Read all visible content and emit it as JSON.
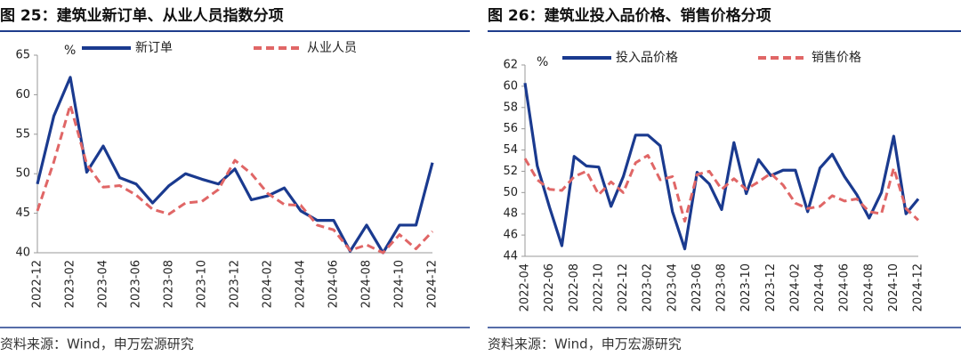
{
  "chart_data": [
    {
      "type": "line",
      "title": "图 25：建筑业新订单、从业人员指数分项",
      "source": "资料来源：Wind，申万宏源研究",
      "unit_label": "%",
      "categories": [
        "2022-12",
        null,
        "2023-02",
        null,
        "2023-04",
        null,
        "2023-06",
        null,
        "2023-08",
        null,
        "2023-10",
        null,
        "2023-12",
        null,
        "2024-02",
        null,
        "2024-04",
        null,
        "2024-06",
        null,
        "2024-08",
        null,
        "2024-10",
        null,
        "2024-12"
      ],
      "series": [
        {
          "name": "新订单",
          "color": "#1a3a8f",
          "dashed": false,
          "values": [
            48.7,
            57.3,
            62.2,
            50.2,
            53.5,
            49.5,
            48.7,
            46.3,
            48.5,
            50.0,
            49.3,
            48.7,
            50.6,
            46.7,
            47.2,
            48.2,
            45.3,
            44.1,
            44.1,
            40.2,
            43.5,
            40.0,
            43.5,
            43.5,
            51.4
          ]
        },
        {
          "name": "从业人员",
          "color": "#e06666",
          "dashed": true,
          "values": [
            45.3,
            51.5,
            58.7,
            51.2,
            48.3,
            48.5,
            47.3,
            45.5,
            44.9,
            46.3,
            46.5,
            48.0,
            51.7,
            50.0,
            47.5,
            46.1,
            46.0,
            43.5,
            42.9,
            40.3,
            41.0,
            40.0,
            42.3,
            40.5,
            42.7
          ]
        }
      ],
      "ylim": [
        40,
        65
      ],
      "yticks": [
        40,
        45,
        50,
        55,
        60,
        65
      ]
    },
    {
      "type": "line",
      "title": "图 26：建筑业投入品价格、销售价格分项",
      "source": "资料来源：Wind，申万宏源研究",
      "unit_label": "%",
      "categories": [
        "2022-04",
        null,
        "2022-06",
        null,
        "2022-08",
        null,
        "2022-10",
        null,
        "2022-12",
        null,
        "2023-02",
        null,
        "2023-04",
        null,
        "2023-06",
        null,
        "2023-08",
        null,
        "2023-10",
        null,
        "2023-12",
        null,
        "2024-02",
        null,
        "2024-04",
        null,
        "2024-06",
        null,
        "2024-08",
        null,
        "2024-10",
        null,
        "2024-12"
      ],
      "series": [
        {
          "name": "投入品价格",
          "color": "#1a3a8f",
          "dashed": false,
          "values": [
            60.3,
            52.5,
            48.6,
            45.0,
            53.4,
            52.5,
            52.4,
            48.7,
            51.5,
            55.4,
            55.4,
            54.4,
            48.2,
            44.7,
            51.9,
            50.8,
            48.4,
            54.7,
            49.9,
            53.1,
            51.6,
            52.1,
            52.1,
            48.2,
            52.3,
            53.6,
            51.5,
            49.8,
            47.6,
            50.0,
            55.3,
            48.0,
            49.4
          ]
        },
        {
          "name": "销售价格",
          "color": "#e06666",
          "dashed": true,
          "values": [
            53.2,
            51.2,
            50.3,
            50.2,
            51.5,
            52.0,
            49.8,
            51.0,
            50.0,
            52.8,
            53.5,
            51.2,
            51.5,
            47.3,
            51.7,
            52.0,
            50.3,
            51.3,
            50.3,
            51.0,
            51.8,
            50.7,
            49.0,
            48.5,
            48.7,
            49.7,
            49.2,
            49.4,
            48.2,
            48.0,
            52.3,
            48.5,
            47.4
          ]
        }
      ],
      "ylim": [
        44,
        62
      ],
      "yticks": [
        44,
        46,
        48,
        50,
        52,
        54,
        56,
        58,
        60,
        62
      ]
    }
  ]
}
